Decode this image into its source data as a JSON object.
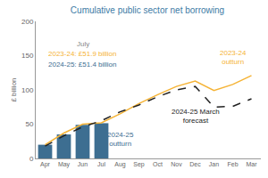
{
  "chart_data": {
    "type": "bar",
    "title": "Cumulative public sector net borrowing",
    "y_label": "£ billion",
    "categories": [
      "Apr",
      "May",
      "Jun",
      "Jul",
      "Aug",
      "Sep",
      "Oct",
      "Nov",
      "Dec",
      "Jan",
      "Feb",
      "Mar"
    ],
    "series": [
      {
        "name": "2024-25 outturn",
        "type": "bar",
        "color": "#3d6e91",
        "values": [
          20,
          35,
          49,
          51.4,
          null,
          null,
          null,
          null,
          null,
          null,
          null,
          null
        ]
      },
      {
        "name": "2023-24 outturn",
        "type": "line",
        "color": "#f5b335",
        "line_style": "solid",
        "values": [
          20,
          37,
          50,
          51.9,
          65,
          80,
          93,
          105,
          113,
          99,
          108,
          121
        ]
      },
      {
        "name": "2024-25 March forecast",
        "type": "line",
        "color": "#222222",
        "line_style": "dashed",
        "values": [
          18,
          33,
          46,
          55,
          68,
          78,
          90,
          100,
          105,
          75,
          76,
          87
        ]
      }
    ],
    "ylim": [
      0,
      200
    ],
    "yticks": [
      0,
      50,
      100,
      150,
      200
    ],
    "grid": false,
    "annotations": [
      {
        "text": [
          "July"
        ],
        "x": "Jun",
        "y": 167,
        "color": "#888888"
      },
      {
        "text": [
          "2023-24: £51.9 billion"
        ],
        "x": "Jun",
        "y": 152,
        "color": "#f5b335"
      },
      {
        "text": [
          "2024-25: £51.4 billion"
        ],
        "x": "Jun",
        "y": 137,
        "color": "#3d6e91"
      },
      {
        "text": [
          "2023-24",
          "outturn"
        ],
        "x": "Feb",
        "y": 147,
        "color": "#f5b335"
      },
      {
        "text": [
          "2024-25 March",
          "forecast"
        ],
        "x": "Dec",
        "y": 62,
        "color": "#222222"
      },
      {
        "text": [
          "2024-25",
          "outturn"
        ],
        "x": "Aug",
        "y": 28,
        "color": "#3d6e91"
      }
    ]
  }
}
